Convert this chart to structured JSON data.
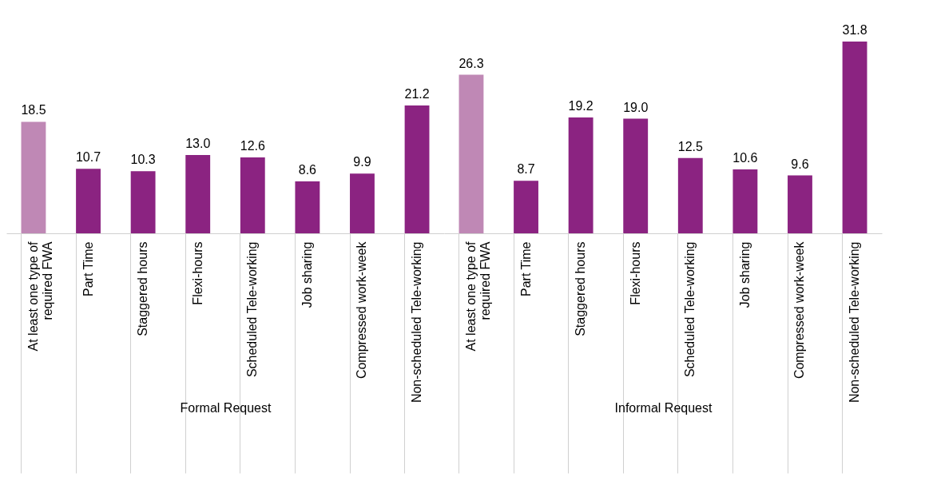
{
  "chart_data": [
    {
      "type": "bar",
      "xlabel": "Formal Request",
      "categories": [
        "At least one type of required FWA",
        "Part Time",
        "Staggered hours",
        "Flexi-hours",
        "Scheduled Tele-working",
        "Job sharing",
        "Compressed work-week",
        "Non-scheduled Tele-working"
      ],
      "values": [
        18.5,
        10.7,
        10.3,
        13.0,
        12.6,
        8.6,
        9.9,
        21.2
      ],
      "value_labels": [
        "18.5",
        "10.7",
        "10.3",
        "13.0",
        "12.6",
        "8.6",
        "9.9",
        "21.2"
      ],
      "colors": [
        "#bf88b5",
        "#8b2381",
        "#8b2381",
        "#8b2381",
        "#8b2381",
        "#8b2381",
        "#8b2381",
        "#8b2381"
      ]
    },
    {
      "type": "bar",
      "xlabel": "Informal Request",
      "categories": [
        "At least one type of required FWA",
        "Part Time",
        "Staggered hours",
        "Flexi-hours",
        "Scheduled Tele-working",
        "Job sharing",
        "Compressed work-week",
        "Non-scheduled Tele-working"
      ],
      "values": [
        26.3,
        8.7,
        19.2,
        19.0,
        12.5,
        10.6,
        9.6,
        31.8
      ],
      "value_labels": [
        "26.3",
        "8.7",
        "19.2",
        "19.0",
        "12.5",
        "10.6",
        "9.6",
        "31.8"
      ],
      "colors": [
        "#bf88b5",
        "#8b2381",
        "#8b2381",
        "#8b2381",
        "#8b2381",
        "#8b2381",
        "#8b2381",
        "#8b2381"
      ]
    }
  ]
}
